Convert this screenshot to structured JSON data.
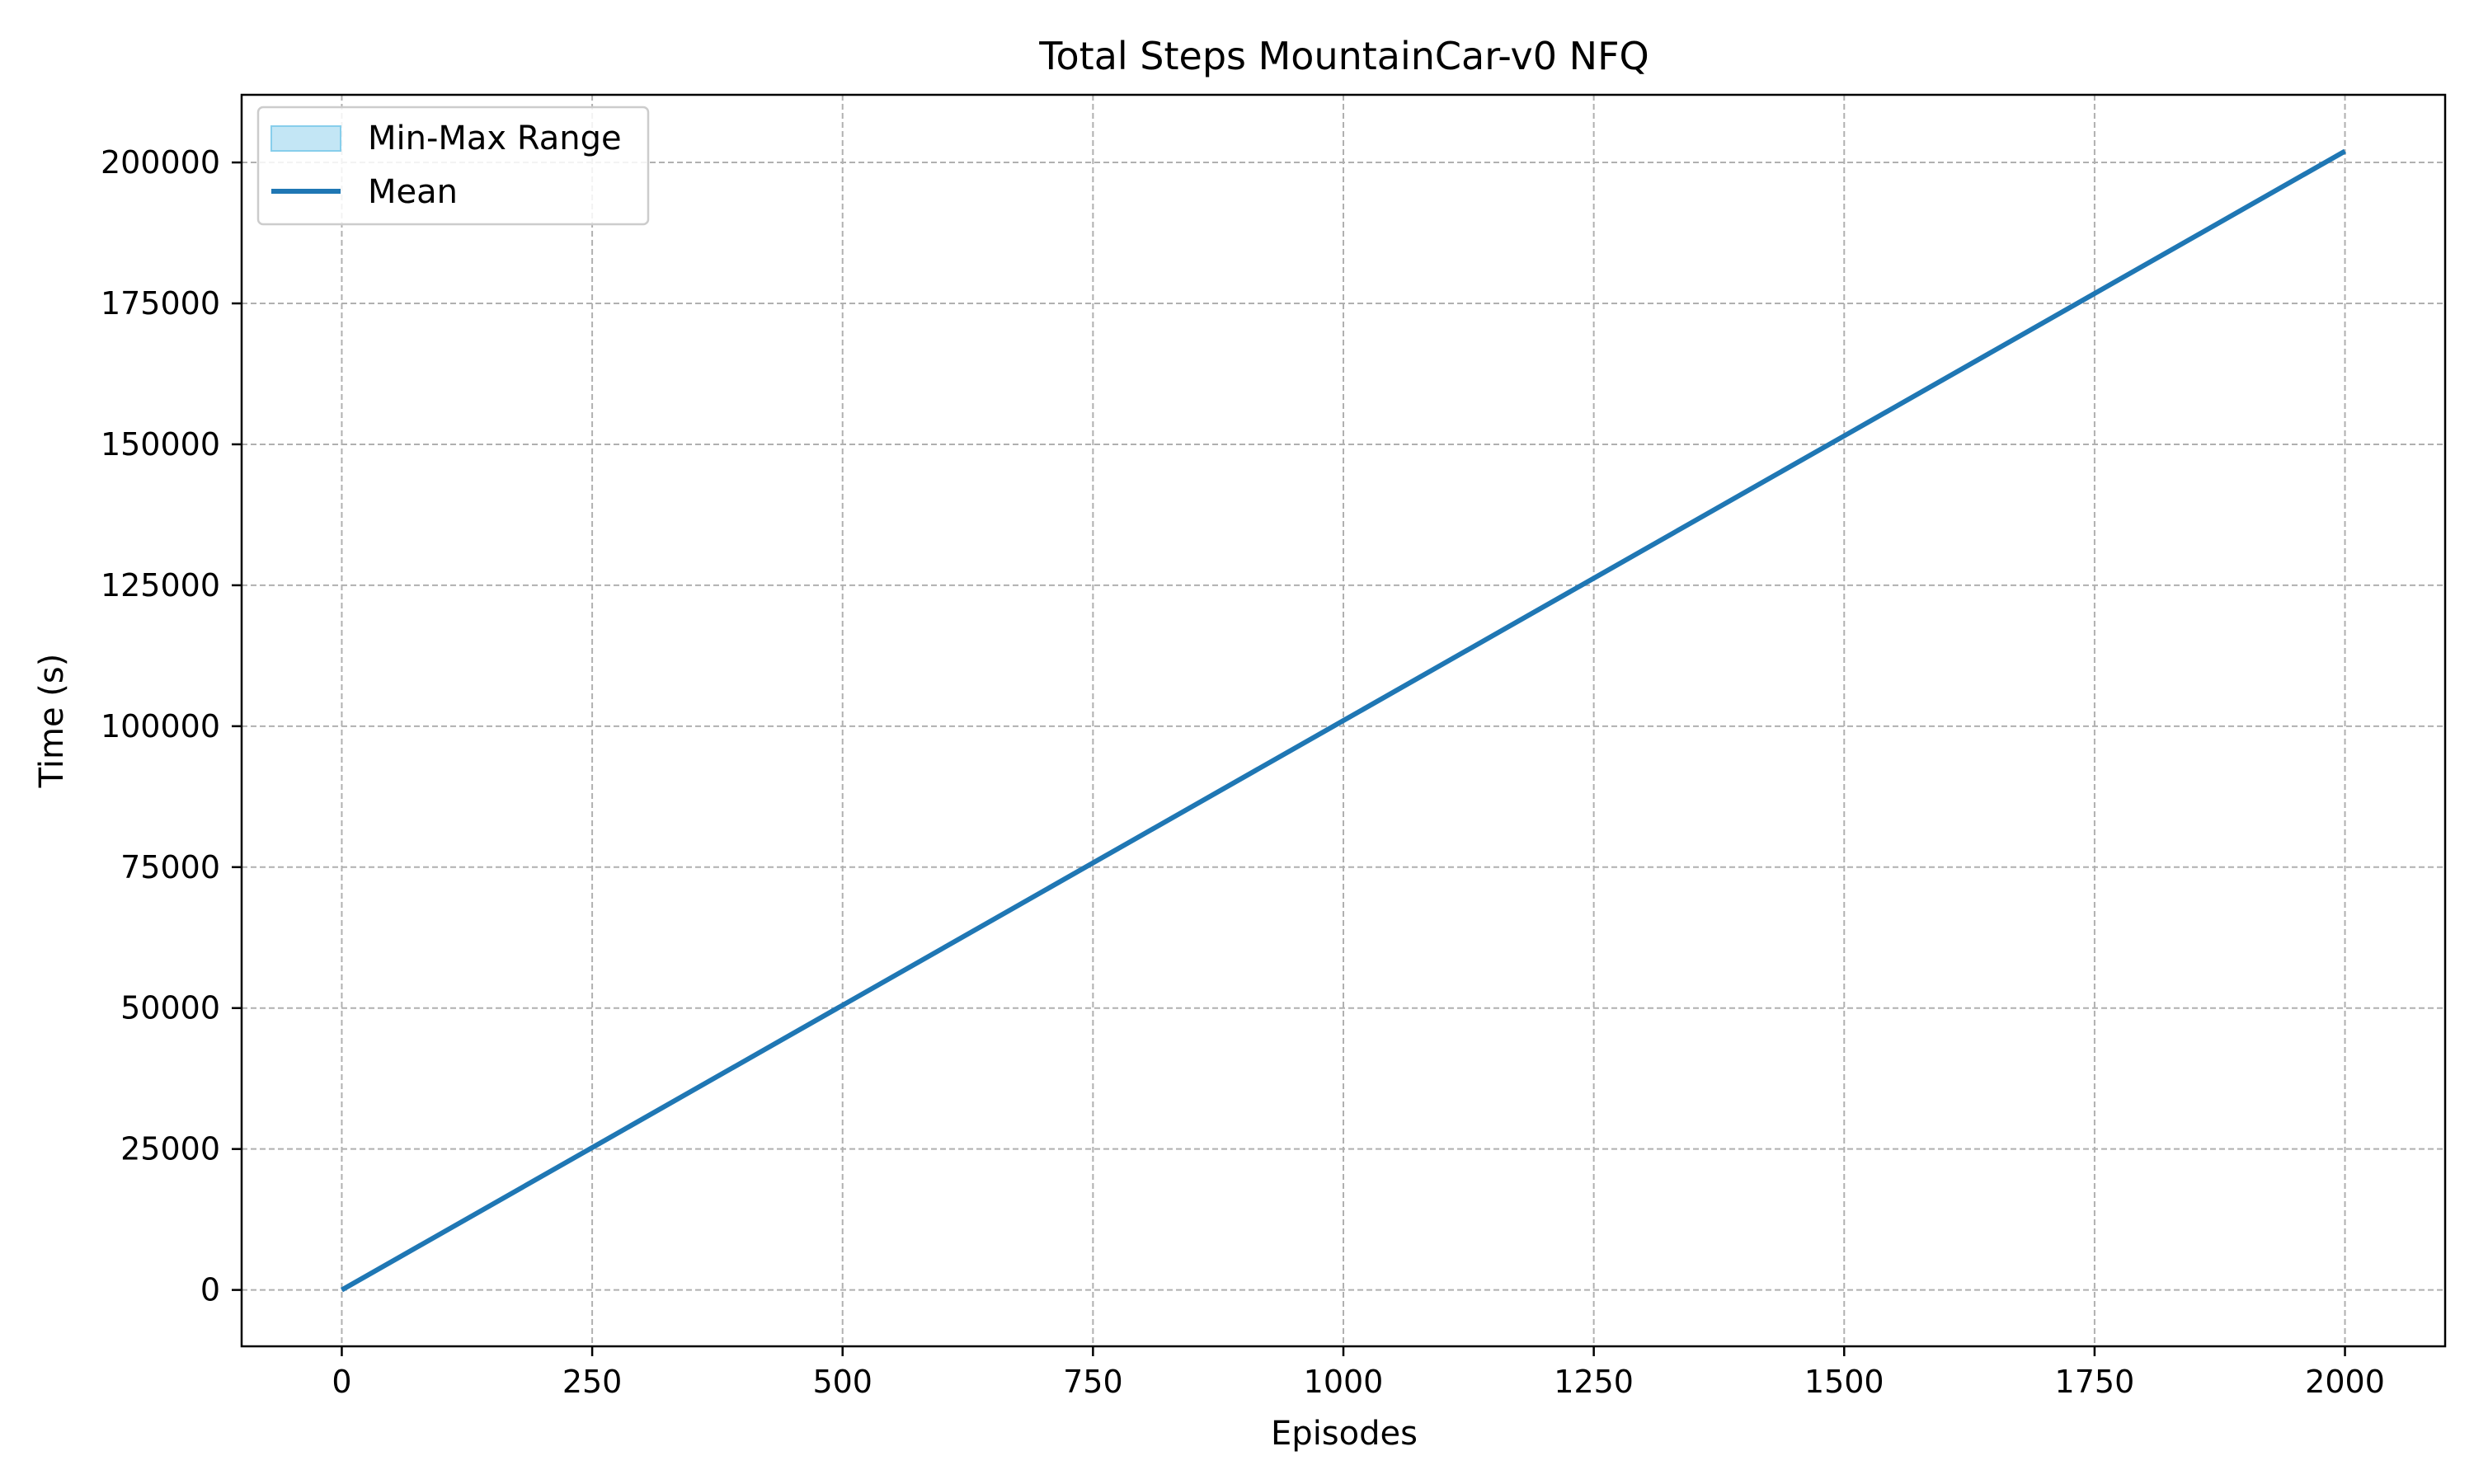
{
  "chart_data": {
    "type": "line",
    "title": "Total Steps MountainCar-v0 NFQ",
    "xlabel": "Episodes",
    "ylabel": "Time (s)",
    "xlim": [
      -100,
      2100
    ],
    "ylim": [
      -10000,
      212000
    ],
    "x_ticks": [
      0,
      250,
      500,
      750,
      1000,
      1250,
      1500,
      1750,
      2000
    ],
    "y_ticks": [
      0,
      25000,
      50000,
      75000,
      100000,
      125000,
      150000,
      175000,
      200000
    ],
    "grid": true,
    "legend_position": "top-left",
    "legend": [
      {
        "label": "Min-Max Range",
        "kind": "patch",
        "color": "#87CEEB"
      },
      {
        "label": "Mean",
        "kind": "line",
        "color": "#1f77b4"
      }
    ],
    "series": [
      {
        "name": "Mean",
        "color": "#1f77b4",
        "x": [
          0,
          250,
          500,
          750,
          1000,
          1250,
          1500,
          1750,
          2000
        ],
        "y": [
          0,
          25250,
          50500,
          75750,
          101000,
          126250,
          151500,
          176750,
          202000
        ]
      },
      {
        "name": "Min-Max Range",
        "color": "#87CEEB",
        "x": [
          0,
          250,
          500,
          750,
          1000,
          1250,
          1500,
          1750,
          2000
        ],
        "y_min": [
          0,
          25250,
          50500,
          75750,
          101000,
          126250,
          151500,
          176750,
          202000
        ],
        "y_max": [
          0,
          25250,
          50500,
          75750,
          101000,
          126250,
          151500,
          176750,
          202000
        ]
      }
    ]
  }
}
